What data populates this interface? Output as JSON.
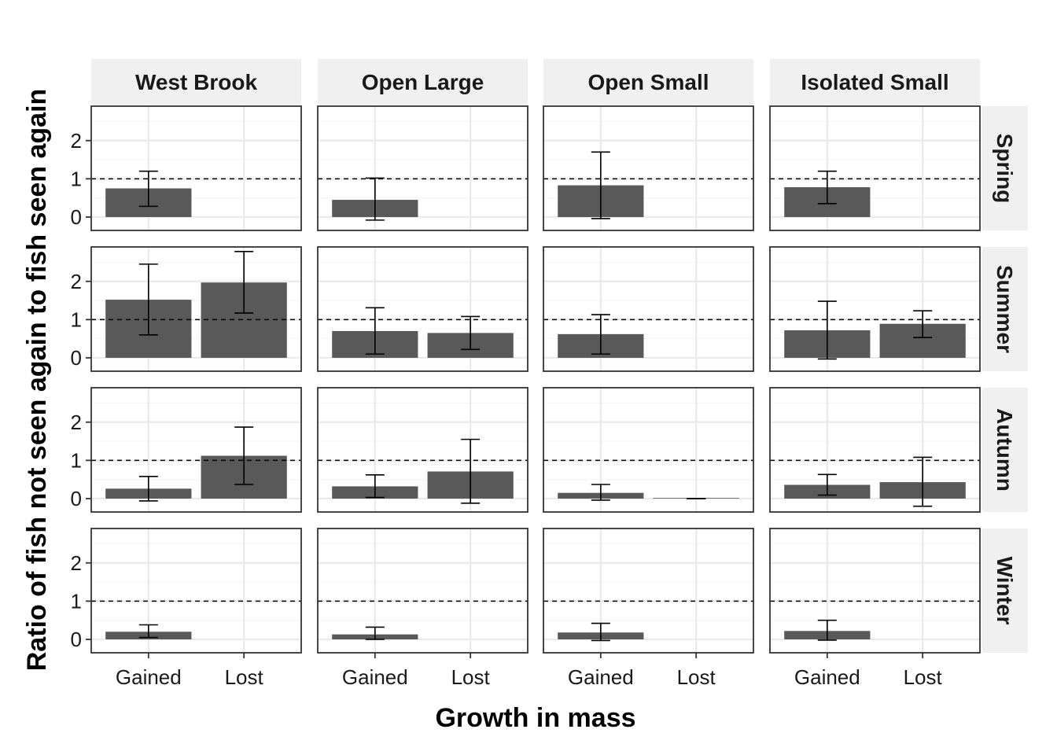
{
  "chart_data": {
    "type": "bar",
    "xlabel": "Growth in mass",
    "ylabel": "Ratio of fish not seen again to fish seen again",
    "categories": [
      "Gained",
      "Lost"
    ],
    "columns": [
      "West Brook",
      "Open Large",
      "Open Small",
      "Isolated Small"
    ],
    "rows": [
      "Spring",
      "Summer",
      "Autumn",
      "Winter"
    ],
    "ylim": [
      -0.35,
      2.9
    ],
    "yticks": [
      "0",
      "1",
      "2"
    ],
    "reference_line": 1,
    "grid": true,
    "colors": {
      "bar": "#595959",
      "strip_bg": "#f0f0f0",
      "grid": "#ebebeb",
      "panel_border": "#333333",
      "error_bar": "#000000"
    },
    "panels": [
      {
        "column": "West Brook",
        "row": "Spring",
        "bars": [
          {
            "category": "Gained",
            "value": 0.75,
            "lower": 0.28,
            "upper": 1.2
          }
        ]
      },
      {
        "column": "Open Large",
        "row": "Spring",
        "bars": [
          {
            "category": "Gained",
            "value": 0.45,
            "lower": -0.08,
            "upper": 1.02
          }
        ]
      },
      {
        "column": "Open Small",
        "row": "Spring",
        "bars": [
          {
            "category": "Gained",
            "value": 0.83,
            "lower": -0.04,
            "upper": 1.7
          }
        ]
      },
      {
        "column": "Isolated Small",
        "row": "Spring",
        "bars": [
          {
            "category": "Gained",
            "value": 0.78,
            "lower": 0.35,
            "upper": 1.2
          }
        ]
      },
      {
        "column": "West Brook",
        "row": "Summer",
        "bars": [
          {
            "category": "Gained",
            "value": 1.52,
            "lower": 0.6,
            "upper": 2.45
          },
          {
            "category": "Lost",
            "value": 1.97,
            "lower": 1.17,
            "upper": 2.78
          }
        ]
      },
      {
        "column": "Open Large",
        "row": "Summer",
        "bars": [
          {
            "category": "Gained",
            "value": 0.7,
            "lower": 0.1,
            "upper": 1.31
          },
          {
            "category": "Lost",
            "value": 0.65,
            "lower": 0.22,
            "upper": 1.08
          }
        ]
      },
      {
        "column": "Open Small",
        "row": "Summer",
        "bars": [
          {
            "category": "Gained",
            "value": 0.62,
            "lower": 0.1,
            "upper": 1.13
          }
        ]
      },
      {
        "column": "Isolated Small",
        "row": "Summer",
        "bars": [
          {
            "category": "Gained",
            "value": 0.72,
            "lower": -0.03,
            "upper": 1.48
          },
          {
            "category": "Lost",
            "value": 0.89,
            "lower": 0.53,
            "upper": 1.23
          }
        ]
      },
      {
        "column": "West Brook",
        "row": "Autumn",
        "bars": [
          {
            "category": "Gained",
            "value": 0.26,
            "lower": -0.06,
            "upper": 0.58
          },
          {
            "category": "Lost",
            "value": 1.12,
            "lower": 0.37,
            "upper": 1.87
          }
        ]
      },
      {
        "column": "Open Large",
        "row": "Autumn",
        "bars": [
          {
            "category": "Gained",
            "value": 0.32,
            "lower": 0.03,
            "upper": 0.62
          },
          {
            "category": "Lost",
            "value": 0.71,
            "lower": -0.12,
            "upper": 1.55
          }
        ]
      },
      {
        "column": "Open Small",
        "row": "Autumn",
        "bars": [
          {
            "category": "Gained",
            "value": 0.15,
            "lower": -0.04,
            "upper": 0.37
          },
          {
            "category": "Lost",
            "value": 0.0,
            "lower": 0.0,
            "upper": 0.0
          }
        ]
      },
      {
        "column": "Isolated Small",
        "row": "Autumn",
        "bars": [
          {
            "category": "Gained",
            "value": 0.36,
            "lower": 0.09,
            "upper": 0.63
          },
          {
            "category": "Lost",
            "value": 0.43,
            "lower": -0.2,
            "upper": 1.08
          }
        ]
      },
      {
        "column": "West Brook",
        "row": "Winter",
        "bars": [
          {
            "category": "Gained",
            "value": 0.2,
            "lower": 0.05,
            "upper": 0.38
          }
        ]
      },
      {
        "column": "Open Large",
        "row": "Winter",
        "bars": [
          {
            "category": "Gained",
            "value": 0.13,
            "lower": 0.0,
            "upper": 0.32
          }
        ]
      },
      {
        "column": "Open Small",
        "row": "Winter",
        "bars": [
          {
            "category": "Gained",
            "value": 0.18,
            "lower": -0.03,
            "upper": 0.42
          }
        ]
      },
      {
        "column": "Isolated Small",
        "row": "Winter",
        "bars": [
          {
            "category": "Gained",
            "value": 0.22,
            "lower": -0.02,
            "upper": 0.5
          }
        ]
      }
    ]
  }
}
